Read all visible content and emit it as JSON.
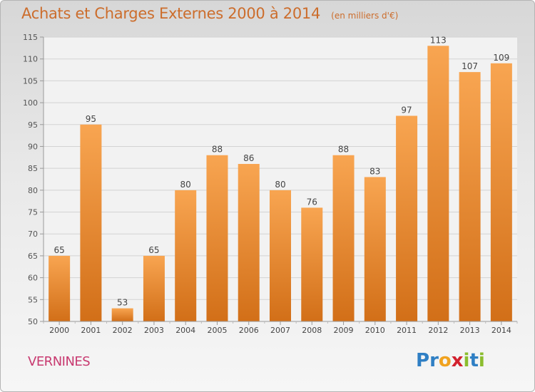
{
  "title": "Achats et Charges Externes 2000 à 2014",
  "subtitle": "(en milliers d'€)",
  "commune": "VERNINES",
  "logo": {
    "text": "Proxiti",
    "letters": [
      {
        "ch": "P",
        "color": "#2f7fc4"
      },
      {
        "ch": "r",
        "color": "#2f7fc4"
      },
      {
        "ch": "o",
        "color": "#f0a21f"
      },
      {
        "ch": "x",
        "color": "#d2212e"
      },
      {
        "ch": "i",
        "color": "#8bbd2e"
      },
      {
        "ch": "t",
        "color": "#2f7fc4"
      },
      {
        "ch": "i",
        "color": "#8bbd2e"
      }
    ]
  },
  "colors": {
    "title": "#cc6d2c",
    "bar_top": "#f8a551",
    "bar_bottom": "#d26f18",
    "commune": "#c83a70"
  },
  "chart_data": {
    "type": "bar",
    "title": "Achats et Charges Externes 2000 à 2014",
    "subtitle": "(en milliers d'€)",
    "categories": [
      "2000",
      "2001",
      "2002",
      "2003",
      "2004",
      "2005",
      "2006",
      "2007",
      "2008",
      "2009",
      "2010",
      "2011",
      "2012",
      "2013",
      "2014"
    ],
    "values": [
      65,
      95,
      53,
      65,
      80,
      88,
      86,
      80,
      76,
      88,
      83,
      97,
      113,
      107,
      109
    ],
    "xlabel": "",
    "ylabel": "",
    "ylim": [
      50,
      115
    ],
    "yticks": [
      50,
      55,
      60,
      65,
      70,
      75,
      80,
      85,
      90,
      95,
      100,
      105,
      110,
      115
    ],
    "grid": true,
    "data_labels": true
  }
}
